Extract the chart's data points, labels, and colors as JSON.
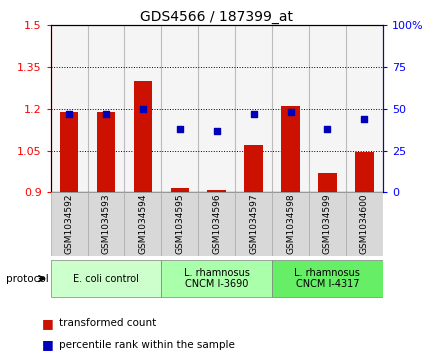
{
  "title": "GDS4566 / 187399_at",
  "samples": [
    "GSM1034592",
    "GSM1034593",
    "GSM1034594",
    "GSM1034595",
    "GSM1034596",
    "GSM1034597",
    "GSM1034598",
    "GSM1034599",
    "GSM1034600"
  ],
  "transformed_count": [
    1.19,
    1.19,
    1.3,
    0.915,
    0.91,
    1.07,
    1.21,
    0.97,
    1.045
  ],
  "percentile_rank": [
    47,
    47,
    50,
    38,
    37,
    47,
    48,
    38,
    44
  ],
  "ylim_left": [
    0.9,
    1.5
  ],
  "ylim_right": [
    0,
    100
  ],
  "yticks_left": [
    0.9,
    1.05,
    1.2,
    1.35,
    1.5
  ],
  "yticks_left_labels": [
    "0.9",
    "1.05",
    "1.2",
    "1.35",
    "1.5"
  ],
  "yticks_right": [
    0,
    25,
    50,
    75,
    100
  ],
  "yticks_right_labels": [
    "0",
    "25",
    "50",
    "75",
    "100%"
  ],
  "protocols": [
    {
      "label": "E. coli control",
      "start": 0,
      "end": 3,
      "color": "#ccffcc"
    },
    {
      "label": "L. rhamnosus\nCNCM I-3690",
      "start": 3,
      "end": 6,
      "color": "#aaffaa"
    },
    {
      "label": "L. rhamnosus\nCNCM I-4317",
      "start": 6,
      "end": 9,
      "color": "#66ee66"
    }
  ],
  "bar_color": "#cc1100",
  "dot_color": "#0000bb",
  "bar_width": 0.5,
  "legend_labels": [
    "transformed count",
    "percentile rank within the sample"
  ],
  "legend_colors": [
    "#cc1100",
    "#0000bb"
  ],
  "sample_bg_color": "#d8d8d8",
  "sample_border_color": "#aaaaaa"
}
